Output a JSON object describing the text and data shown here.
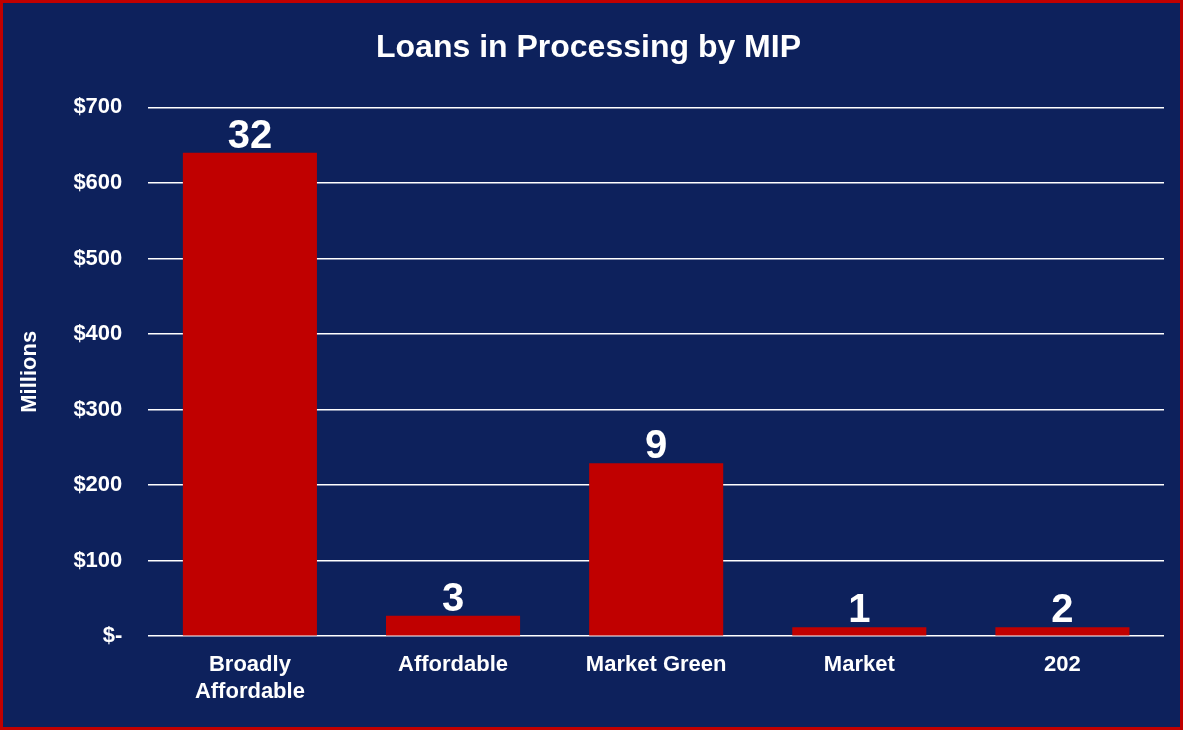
{
  "chart_data": {
    "type": "bar",
    "title": "Loans in Processing by MIP",
    "ylabel": "Millions",
    "categories": [
      "Broadly Affordable",
      "Affordable",
      "Market Green",
      "Market",
      "202"
    ],
    "values": [
      640,
      27,
      229,
      12,
      12
    ],
    "annotations": [
      {
        "text": "32",
        "x": "Broadly Affordable",
        "y": 640
      },
      {
        "text": "3",
        "x": "Affordable",
        "y": 27
      },
      {
        "text": "9",
        "x": "Market Green",
        "y": 229
      },
      {
        "text": "1",
        "x": "Market",
        "y": 12
      },
      {
        "text": "2",
        "x": "202",
        "y": 12
      }
    ],
    "color": "#c00000",
    "ylim": [
      0,
      700
    ],
    "yticks": [
      {
        "value": 0,
        "label": "$-"
      },
      {
        "value": 100,
        "label": "$100"
      },
      {
        "value": 200,
        "label": "$200"
      },
      {
        "value": 300,
        "label": "$300"
      },
      {
        "value": 400,
        "label": "$400"
      },
      {
        "value": 500,
        "label": "$500"
      },
      {
        "value": 600,
        "label": "$600"
      },
      {
        "value": 700,
        "label": "$700"
      }
    ],
    "grid": "y",
    "legend": false
  }
}
